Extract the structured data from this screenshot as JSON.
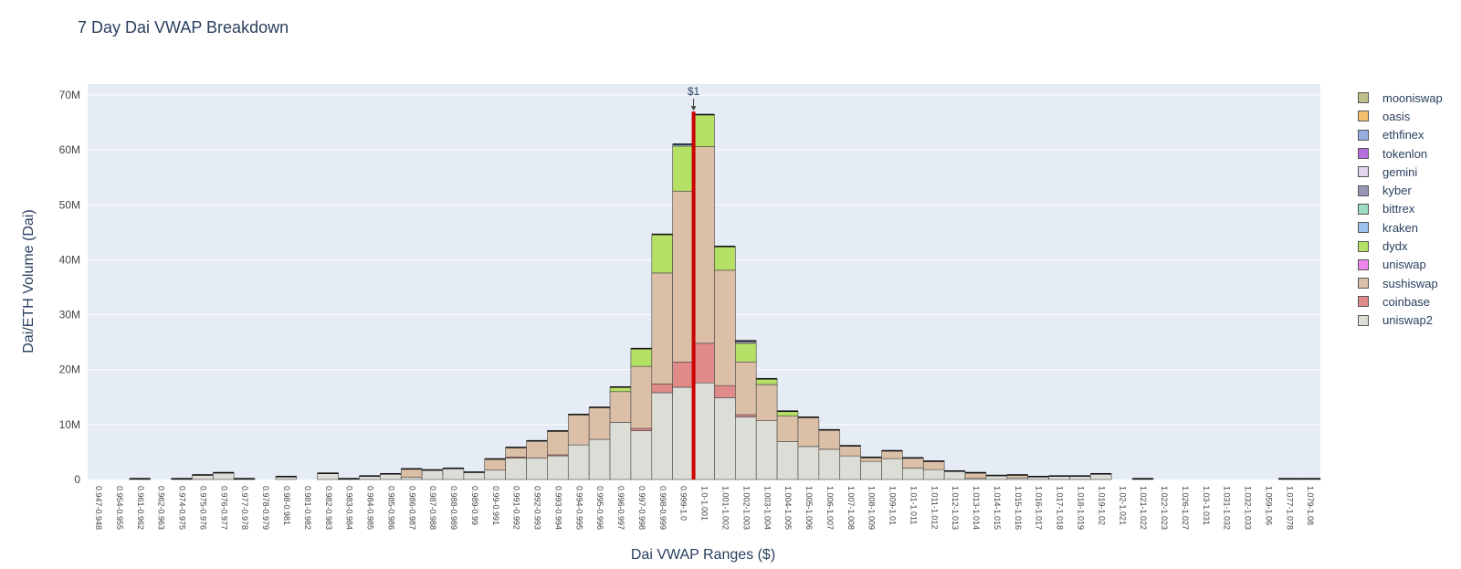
{
  "chart_data": {
    "type": "bar",
    "stacked": true,
    "title": "7 Day Dai VWAP Breakdown",
    "xlabel": "Dai VWAP Ranges ($)",
    "ylabel": "Dai/ETH Volume (Dai)",
    "ylim": [
      0,
      72000000
    ],
    "yticks": [
      "0",
      "10M",
      "20M",
      "30M",
      "40M",
      "50M",
      "60M",
      "70M"
    ],
    "grid": true,
    "legend_position": "right",
    "annotation": {
      "text": "$1",
      "category": "0.999-1.0"
    },
    "categories": [
      "0.947-0.948",
      "0.954-0.955",
      "0.961-0.962",
      "0.962-0.963",
      "0.974-0.975",
      "0.975-0.976",
      "0.976-0.977",
      "0.977-0.978",
      "0.978-0.979",
      "0.98-0.981",
      "0.981-0.982",
      "0.982-0.983",
      "0.983-0.984",
      "0.984-0.985",
      "0.985-0.986",
      "0.986-0.987",
      "0.987-0.988",
      "0.988-0.989",
      "0.989-0.99",
      "0.99-0.991",
      "0.991-0.992",
      "0.992-0.993",
      "0.993-0.994",
      "0.994-0.995",
      "0.995-0.996",
      "0.996-0.997",
      "0.997-0.998",
      "0.998-0.999",
      "0.999-1.0",
      "1.0-1.001",
      "1.001-1.002",
      "1.002-1.003",
      "1.003-1.004",
      "1.004-1.005",
      "1.005-1.006",
      "1.006-1.007",
      "1.007-1.008",
      "1.008-1.009",
      "1.009-1.01",
      "1.01-1.011",
      "1.011-1.012",
      "1.012-1.013",
      "1.013-1.014",
      "1.014-1.015",
      "1.015-1.016",
      "1.016-1.017",
      "1.017-1.018",
      "1.018-1.019",
      "1.019-1.02",
      "1.02-1.021",
      "1.021-1.022",
      "1.022-1.023",
      "1.026-1.027",
      "1.03-1.031",
      "1.031-1.032",
      "1.032-1.033",
      "1.059-1.06",
      "1.077-1.078",
      "1.079-1.08"
    ],
    "legend_order": [
      "mooniswap",
      "oasis",
      "ethfinex",
      "tokenlon",
      "gemini",
      "kyber",
      "bittrex",
      "kraken",
      "dydx",
      "uniswap",
      "sushiswap",
      "coinbase",
      "uniswap2"
    ],
    "series": [
      {
        "name": "uniswap2",
        "color": "#dcddd6",
        "values": [
          0,
          0,
          0.1,
          0,
          0.1,
          0.8,
          1.2,
          0.1,
          0,
          0.5,
          0,
          1.1,
          0.1,
          0.6,
          1.0,
          0.4,
          1.7,
          2.0,
          1.3,
          1.7,
          3.9,
          3.9,
          4.3,
          6.3,
          7.3,
          10.4,
          8.9,
          15.8,
          16.8,
          17.6,
          14.9,
          11.4,
          10.7,
          6.9,
          6.0,
          5.5,
          4.3,
          3.3,
          3.8,
          2.1,
          1.8,
          1.5,
          0.2,
          0.7,
          0.3,
          0.5,
          0.6,
          0.6,
          1.0,
          0,
          0.1,
          0,
          0,
          0,
          0,
          0,
          0,
          0.1,
          0.1
        ]
      },
      {
        "name": "coinbase",
        "color": "#e08a8a",
        "values": [
          0,
          0,
          0,
          0,
          0,
          0,
          0,
          0,
          0,
          0,
          0,
          0,
          0,
          0,
          0,
          0,
          0,
          0,
          0,
          0,
          0.2,
          0,
          0.2,
          0,
          0,
          0,
          0.4,
          1.6,
          4.6,
          7.2,
          2.2,
          0.4,
          0,
          0,
          0,
          0,
          0,
          0,
          0,
          0,
          0,
          0,
          0,
          0,
          0,
          0,
          0,
          0,
          0,
          0,
          0,
          0,
          0,
          0,
          0,
          0,
          0,
          0,
          0
        ]
      },
      {
        "name": "sushiswap",
        "color": "#dbbfa6",
        "values": [
          0,
          0,
          0,
          0,
          0,
          0,
          0,
          0,
          0,
          0,
          0,
          0,
          0,
          0,
          0,
          1.5,
          0,
          0,
          0,
          2.0,
          1.7,
          3.1,
          4.3,
          5.5,
          5.8,
          5.6,
          11.3,
          20.2,
          31.1,
          35.8,
          21.0,
          9.6,
          6.6,
          4.7,
          5.3,
          3.5,
          1.8,
          0.7,
          1.4,
          1.8,
          1.5,
          0,
          1.0,
          0,
          0.5,
          0,
          0,
          0,
          0,
          0,
          0,
          0,
          0,
          0,
          0,
          0,
          0,
          0,
          0
        ]
      },
      {
        "name": "uniswap",
        "color": "#f186f0",
        "values": [
          0,
          0,
          0,
          0,
          0,
          0,
          0,
          0,
          0,
          0,
          0,
          0,
          0,
          0,
          0,
          0,
          0,
          0,
          0,
          0,
          0,
          0,
          0,
          0,
          0,
          0,
          0,
          0,
          0,
          0,
          0,
          0,
          0,
          0,
          0,
          0,
          0,
          0,
          0,
          0,
          0,
          0,
          0,
          0,
          0,
          0,
          0,
          0,
          0,
          0,
          0,
          0,
          0,
          0,
          0,
          0,
          0,
          0,
          0
        ]
      },
      {
        "name": "dydx",
        "color": "#b4e065",
        "values": [
          0,
          0,
          0,
          0,
          0,
          0,
          0,
          0,
          0,
          0,
          0,
          0,
          0,
          0,
          0,
          0,
          0,
          0,
          0,
          0,
          0,
          0,
          0,
          0,
          0,
          0.8,
          3.2,
          7.0,
          8.2,
          5.8,
          4.3,
          3.4,
          1.0,
          0.8,
          0,
          0,
          0,
          0,
          0,
          0,
          0,
          0,
          0,
          0,
          0,
          0,
          0,
          0,
          0,
          0,
          0,
          0,
          0,
          0,
          0,
          0,
          0,
          0,
          0
        ]
      },
      {
        "name": "kraken",
        "color": "#9bc3ee",
        "values": [
          0,
          0,
          0,
          0,
          0,
          0,
          0,
          0,
          0,
          0,
          0,
          0,
          0,
          0,
          0,
          0,
          0,
          0,
          0,
          0,
          0,
          0,
          0,
          0,
          0,
          0,
          0,
          0,
          0.3,
          0,
          0,
          0,
          0,
          0,
          0,
          0,
          0,
          0,
          0,
          0,
          0,
          0,
          0,
          0,
          0,
          0,
          0,
          0,
          0,
          0,
          0,
          0,
          0,
          0,
          0,
          0,
          0,
          0,
          0
        ]
      },
      {
        "name": "bittrex",
        "color": "#9cdcc0",
        "values": [
          0,
          0,
          0,
          0,
          0,
          0,
          0,
          0,
          0,
          0,
          0,
          0,
          0,
          0,
          0,
          0,
          0,
          0,
          0,
          0,
          0,
          0,
          0,
          0,
          0,
          0,
          0,
          0,
          0,
          0,
          0,
          0,
          0,
          0,
          0,
          0,
          0,
          0,
          0,
          0,
          0,
          0,
          0,
          0,
          0,
          0,
          0,
          0,
          0,
          0,
          0,
          0,
          0,
          0,
          0,
          0,
          0,
          0,
          0
        ]
      },
      {
        "name": "kyber",
        "color": "#9898b8",
        "values": [
          0,
          0,
          0,
          0,
          0,
          0,
          0,
          0,
          0,
          0,
          0,
          0,
          0,
          0,
          0,
          0,
          0,
          0,
          0,
          0,
          0,
          0,
          0,
          0,
          0,
          0,
          0,
          0,
          0,
          0,
          0,
          0.4,
          0,
          0,
          0,
          0,
          0,
          0,
          0,
          0,
          0,
          0,
          0,
          0,
          0,
          0,
          0,
          0,
          0,
          0,
          0,
          0,
          0,
          0,
          0,
          0,
          0,
          0,
          0
        ]
      },
      {
        "name": "gemini",
        "color": "#e2d4ea",
        "values": [
          0,
          0,
          0,
          0,
          0,
          0,
          0,
          0,
          0,
          0,
          0,
          0,
          0,
          0,
          0,
          0,
          0,
          0,
          0,
          0,
          0,
          0,
          0,
          0,
          0,
          0,
          0,
          0,
          0,
          0,
          0,
          0,
          0,
          0,
          0,
          0,
          0,
          0,
          0,
          0,
          0,
          0,
          0,
          0,
          0,
          0,
          0,
          0,
          0,
          0,
          0,
          0,
          0,
          0,
          0,
          0,
          0,
          0,
          0
        ]
      },
      {
        "name": "tokenlon",
        "color": "#b46ee0",
        "values": [
          0,
          0,
          0,
          0,
          0,
          0,
          0,
          0,
          0,
          0,
          0,
          0,
          0,
          0,
          0,
          0,
          0,
          0,
          0,
          0,
          0,
          0,
          0,
          0,
          0,
          0,
          0,
          0,
          0,
          0,
          0,
          0,
          0,
          0,
          0,
          0,
          0,
          0,
          0,
          0,
          0,
          0,
          0,
          0,
          0,
          0,
          0,
          0,
          0,
          0,
          0,
          0,
          0,
          0,
          0,
          0,
          0,
          0,
          0
        ]
      },
      {
        "name": "ethfinex",
        "color": "#97aee0",
        "values": [
          0,
          0,
          0,
          0,
          0,
          0,
          0,
          0,
          0,
          0,
          0,
          0,
          0,
          0,
          0,
          0,
          0,
          0,
          0,
          0,
          0,
          0,
          0,
          0,
          0,
          0,
          0,
          0,
          0,
          0,
          0,
          0,
          0,
          0,
          0,
          0,
          0,
          0,
          0,
          0,
          0,
          0,
          0,
          0,
          0,
          0,
          0,
          0,
          0,
          0,
          0,
          0,
          0,
          0,
          0,
          0,
          0,
          0,
          0
        ]
      },
      {
        "name": "oasis",
        "color": "#f4c26d",
        "values": [
          0,
          0,
          0,
          0,
          0,
          0,
          0,
          0,
          0,
          0,
          0,
          0,
          0,
          0,
          0,
          0,
          0,
          0,
          0,
          0,
          0,
          0,
          0,
          0,
          0,
          0,
          0,
          0,
          0,
          0,
          0,
          0,
          0,
          0,
          0,
          0,
          0,
          0,
          0,
          0,
          0,
          0,
          0,
          0,
          0,
          0,
          0,
          0,
          0,
          0,
          0,
          0,
          0,
          0,
          0,
          0,
          0,
          0,
          0
        ]
      },
      {
        "name": "mooniswap",
        "color": "#bfbf8a",
        "values": [
          0,
          0,
          0,
          0,
          0,
          0,
          0,
          0,
          0,
          0,
          0,
          0,
          0,
          0,
          0,
          0,
          0,
          0,
          0,
          0,
          0,
          0,
          0,
          0,
          0,
          0,
          0,
          0,
          0,
          0,
          0,
          0,
          0,
          0,
          0,
          0,
          0,
          0,
          0,
          0,
          0,
          0,
          0,
          0,
          0,
          0,
          0,
          0,
          0,
          0,
          0,
          0,
          0,
          0,
          0,
          0,
          0,
          0,
          0
        ]
      }
    ],
    "value_unit_multiplier": 1000000
  }
}
